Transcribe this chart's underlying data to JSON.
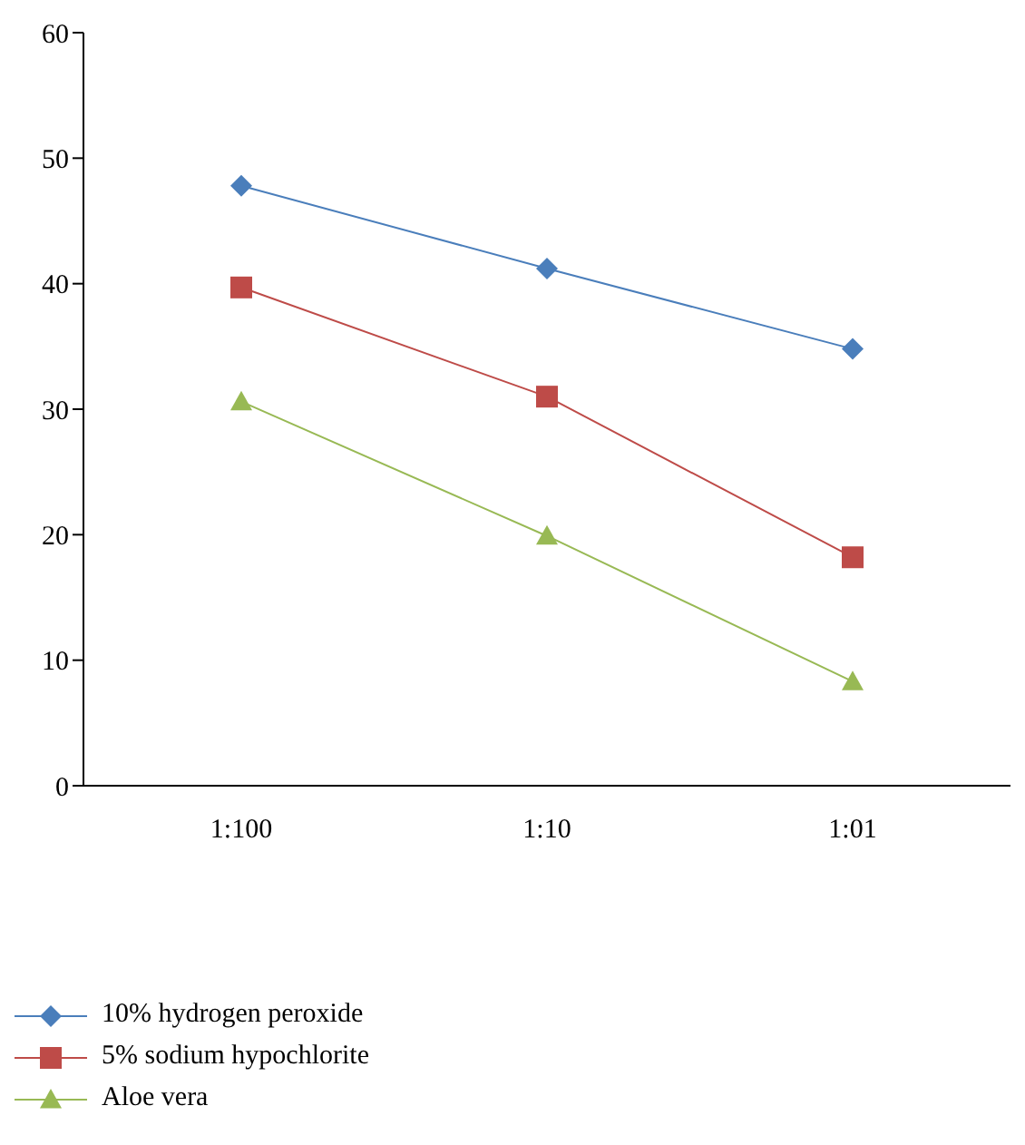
{
  "chart_data": {
    "type": "line",
    "categories": [
      "1:100",
      "1:10",
      "1:01"
    ],
    "series": [
      {
        "name": "10% hydrogen peroxide",
        "color": "#4a7ebb",
        "marker": "diamond",
        "values": [
          47.8,
          41.2,
          34.8
        ]
      },
      {
        "name": "5% sodium hypochlorite",
        "color": "#be4b48",
        "marker": "square",
        "values": [
          39.7,
          31.0,
          18.2
        ]
      },
      {
        "name": "Aloe vera",
        "color": "#98b954",
        "marker": "triangle",
        "values": [
          30.6,
          19.9,
          8.3
        ]
      }
    ],
    "ylim": [
      0,
      60
    ],
    "yticks": [
      0,
      10,
      20,
      30,
      40,
      50,
      60
    ],
    "grid": false,
    "legend": "bottom left"
  }
}
